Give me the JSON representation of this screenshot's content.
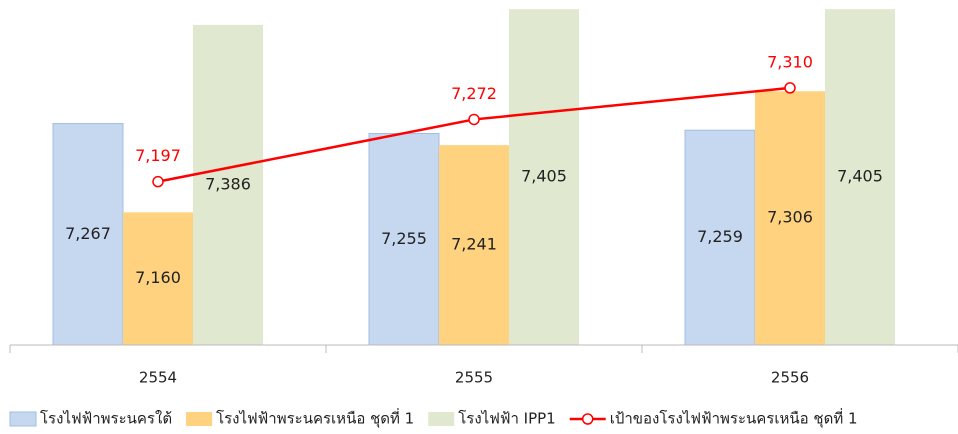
{
  "chart_data": {
    "type": "bar",
    "categories": [
      "2554",
      "2555",
      "2556"
    ],
    "ylim": [
      7000,
      7410
    ],
    "legend": "bottom",
    "series": [
      {
        "name": "โรงไฟฟ้าพระนครใต้",
        "type": "bar",
        "color": "#c6d7f0",
        "values": [
          7267,
          7255,
          7259
        ],
        "value_labels": [
          "7,267",
          "7,255",
          "7,259"
        ]
      },
      {
        "name": "โรงไฟฟ้าพระนครเหนือ ชุดที่ 1",
        "type": "bar",
        "color": "#ffd27f",
        "values": [
          7160,
          7241,
          7306
        ],
        "value_labels": [
          "7,160",
          "7,241",
          "7,306"
        ]
      },
      {
        "name": "โรงไฟฟ้า IPP1",
        "type": "bar",
        "color": "#e0e9cf",
        "values": [
          7386,
          7405,
          7405
        ],
        "value_labels": [
          "7,386",
          "7,405",
          "7,405"
        ]
      },
      {
        "name": "เป้าของโรงไฟฟ้าพระนครเหนือ ชุดที่ 1",
        "type": "line",
        "color": "#ff0000",
        "values": [
          7197,
          7272,
          7310
        ],
        "value_labels": [
          "7,197",
          "7,272",
          "7,310"
        ]
      }
    ]
  }
}
